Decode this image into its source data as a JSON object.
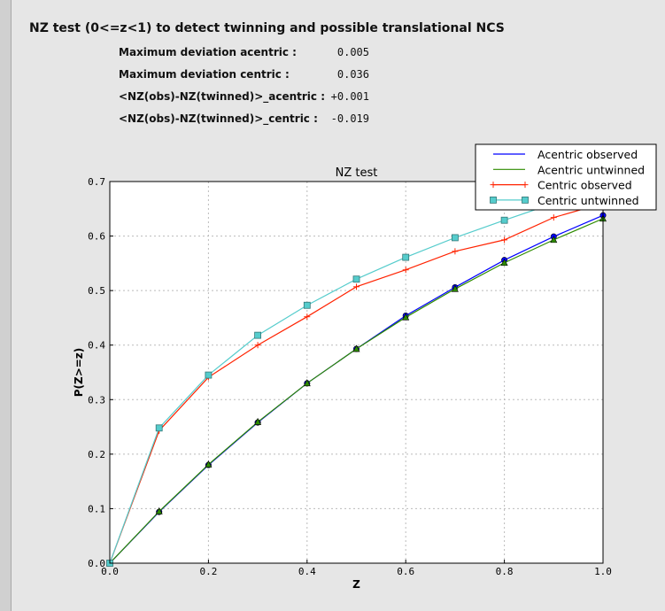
{
  "header": {
    "title": "NZ test (0<=z<1) to detect twinning and possible translational NCS"
  },
  "stats": [
    {
      "label": "Maximum deviation acentric :",
      "value": "0.005"
    },
    {
      "label": "Maximum deviation centric :",
      "value": "0.036"
    },
    {
      "label": "<NZ(obs)-NZ(twinned)>_acentric :",
      "value": "+0.001"
    },
    {
      "label": "<NZ(obs)-NZ(twinned)>_centric :",
      "value": "-0.019"
    }
  ],
  "chart_data": {
    "type": "line",
    "title": "NZ test",
    "xlabel": "Z",
    "ylabel": "P(Z>=z)",
    "xlim": [
      0,
      1
    ],
    "ylim": [
      0,
      0.7
    ],
    "grid": true,
    "legend_position": "top-right",
    "xticks": [
      "0.0",
      "0.2",
      "0.4",
      "0.6",
      "0.8",
      "1.0"
    ],
    "yticks": [
      "0.0",
      "0.1",
      "0.2",
      "0.3",
      "0.4",
      "0.5",
      "0.6",
      "0.7"
    ],
    "x": [
      0,
      0.1,
      0.2,
      0.3,
      0.4,
      0.5,
      0.6,
      0.7,
      0.8,
      0.9,
      1.0
    ],
    "series": [
      {
        "name": "Acentric observed",
        "color": "#0000ff",
        "marker": "circle",
        "values": [
          0,
          0.094,
          0.18,
          0.258,
          0.33,
          0.393,
          0.454,
          0.506,
          0.556,
          0.599,
          0.638
        ]
      },
      {
        "name": "Acentric untwinned",
        "color": "#2e8b00",
        "marker": "triangle",
        "values": [
          0,
          0.095,
          0.181,
          0.259,
          0.33,
          0.393,
          0.451,
          0.503,
          0.551,
          0.593,
          0.632
        ]
      },
      {
        "name": "Centric observed",
        "color": "#ff2200",
        "marker": "plus",
        "values": [
          0,
          0.243,
          0.341,
          0.4,
          0.452,
          0.507,
          0.538,
          0.572,
          0.593,
          0.634,
          0.66
        ]
      },
      {
        "name": "Centric untwinned",
        "color": "#55cccc",
        "marker": "square",
        "values": [
          0,
          0.248,
          0.345,
          0.418,
          0.473,
          0.521,
          0.561,
          0.597,
          0.629,
          0.66,
          0.687
        ]
      }
    ]
  }
}
